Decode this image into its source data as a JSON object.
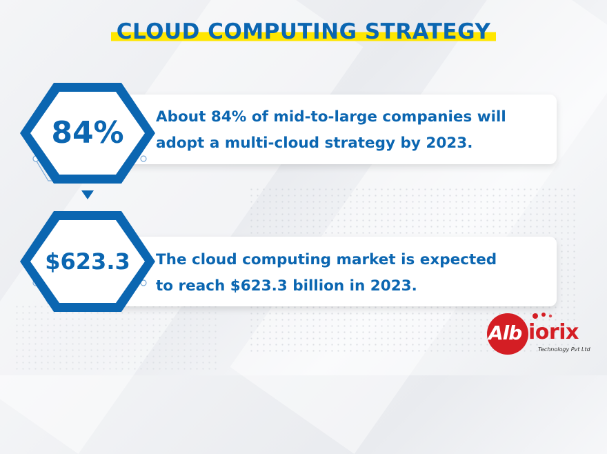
{
  "title": "CLOUD COMPUTING STRATEGY",
  "stats": [
    {
      "value": "84%",
      "line1": "About 84% of mid-to-large companies will",
      "line2": "adopt a multi-cloud strategy by 2023."
    },
    {
      "value": "$623.3",
      "line1": "The cloud computing market is expected",
      "line2": "to reach $623.3 billion in 2023."
    }
  ],
  "logo": {
    "brand_left": "Alb",
    "brand_right": "iorix",
    "tagline": "Technology Pvt Ltd"
  },
  "colors": {
    "primary_blue": "#0b66b1",
    "highlight_yellow": "#ffe600",
    "logo_red": "#d41e24"
  }
}
